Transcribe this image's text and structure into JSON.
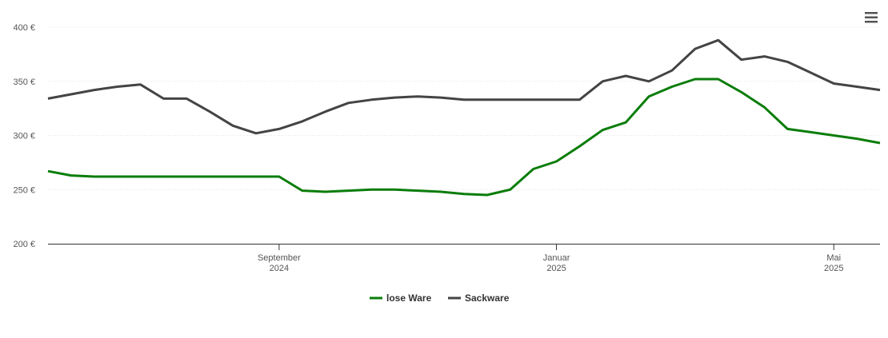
{
  "chart_data": {
    "type": "line",
    "categories": [
      null,
      null,
      null,
      null,
      null,
      null,
      null,
      null,
      null,
      null,
      "September 2024",
      null,
      null,
      null,
      null,
      null,
      null,
      null,
      null,
      null,
      null,
      null,
      "Januar 2025",
      null,
      null,
      null,
      null,
      null,
      null,
      null,
      null,
      null,
      null,
      null,
      "Mai 2025",
      null,
      null
    ],
    "series": [
      {
        "name": "lose Ware",
        "color": "#0a7d0a",
        "values": [
          267,
          263,
          262,
          262,
          262,
          262,
          262,
          262,
          262,
          262,
          262,
          249,
          248,
          249,
          250,
          250,
          249,
          248,
          246,
          245,
          250,
          269,
          276,
          290,
          305,
          312,
          336,
          345,
          352,
          352,
          340,
          326,
          306,
          303,
          300,
          297,
          293
        ]
      },
      {
        "name": "Sackware",
        "color": "#444444",
        "values": [
          334,
          338,
          342,
          345,
          347,
          334,
          334,
          322,
          309,
          302,
          306,
          313,
          322,
          330,
          333,
          335,
          336,
          335,
          333,
          333,
          333,
          333,
          333,
          333,
          350,
          355,
          350,
          360,
          380,
          388,
          370,
          373,
          368,
          358,
          348,
          345,
          342
        ]
      }
    ],
    "ylim": [
      200,
      400
    ],
    "yticks": [
      {
        "value": 200,
        "label": "200 €"
      },
      {
        "value": 250,
        "label": "250 €"
      },
      {
        "value": 300,
        "label": "300 €"
      },
      {
        "value": 350,
        "label": "350 €"
      },
      {
        "value": 400,
        "label": "400 €"
      }
    ],
    "grid": true
  }
}
